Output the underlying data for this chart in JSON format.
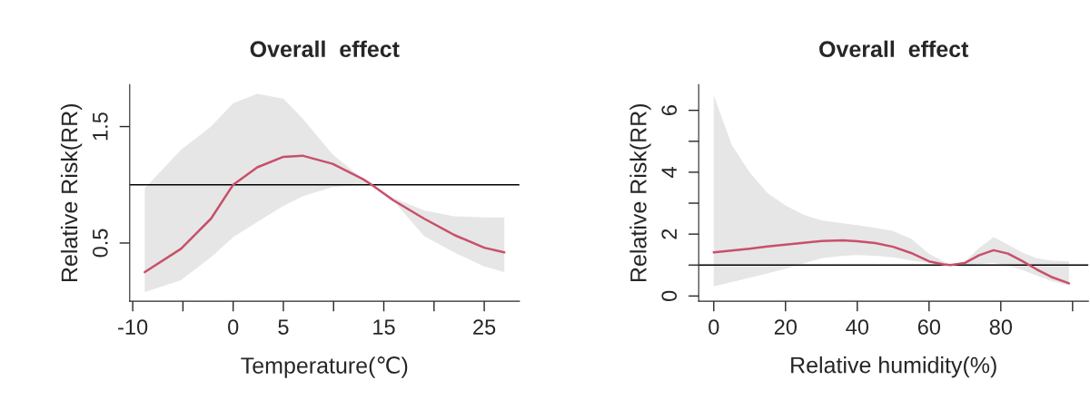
{
  "chart_data": [
    {
      "type": "line",
      "title": "Overall  effect",
      "xlabel": "Temperature(℃)",
      "ylabel": "Relative Risk(RR)",
      "xlim": [
        -10.3,
        28.5
      ],
      "ylim": [
        0,
        1.86
      ],
      "xticks": [
        -10,
        {
          "value": -5,
          "label": null
        },
        0,
        5,
        {
          "value": 10,
          "label": null
        },
        15,
        {
          "value": 20,
          "label": null
        },
        25
      ],
      "yticks": [
        0.5,
        1.5
      ],
      "ref_lines": [
        {
          "axis": "y",
          "value": 1,
          "color": "#000000"
        }
      ],
      "series": [
        {
          "color": "#c8506a",
          "x": [
            -8.8,
            -5.2,
            -2.2,
            0,
            2.4,
            5,
            6.9,
            9.9,
            12.9,
            13.8,
            15.9,
            19,
            22,
            25,
            27
          ],
          "values": [
            0.25,
            0.45,
            0.71,
            1.0,
            1.15,
            1.24,
            1.25,
            1.18,
            1.05,
            1.0,
            0.87,
            0.71,
            0.57,
            0.46,
            0.42
          ],
          "upper": [
            0.97,
            1.3,
            1.5,
            1.7,
            1.78,
            1.74,
            1.57,
            1.26,
            1.05,
            1.0,
            0.89,
            0.78,
            0.73,
            0.72,
            0.72
          ],
          "lower": [
            0.08,
            0.18,
            0.38,
            0.55,
            0.68,
            0.82,
            0.9,
            0.98,
            1.0,
            1.0,
            0.87,
            0.56,
            0.42,
            0.3,
            0.25
          ]
        }
      ]
    },
    {
      "type": "line",
      "title": "Overall  effect",
      "xlabel": "Relative humidity(%)",
      "ylabel": "Relative Risk(RR)",
      "xlim": [
        -4.2,
        104.4
      ],
      "ylim": [
        -0.17,
        6.83
      ],
      "xticks": [
        0,
        20,
        40,
        60,
        80,
        {
          "value": 100,
          "label": null
        }
      ],
      "yticks": [
        0,
        {
          "value": 1,
          "label": null
        },
        2,
        {
          "value": 3,
          "label": null
        },
        4,
        {
          "value": 5,
          "label": null
        },
        6
      ],
      "ref_lines": [
        {
          "axis": "y",
          "value": 1,
          "color": "#000000"
        }
      ],
      "series": [
        {
          "color": "#c8506a",
          "x": [
            0,
            5,
            10,
            15,
            20,
            25,
            30,
            36,
            40,
            45,
            50,
            55,
            60,
            64,
            66,
            70,
            74,
            78,
            82,
            86,
            90,
            94,
            99
          ],
          "values": [
            1.41,
            1.47,
            1.53,
            1.6,
            1.66,
            1.72,
            1.78,
            1.8,
            1.77,
            1.71,
            1.59,
            1.39,
            1.12,
            1.02,
            1.0,
            1.07,
            1.32,
            1.48,
            1.37,
            1.13,
            0.86,
            0.62,
            0.41
          ],
          "upper": [
            6.49,
            4.88,
            4.0,
            3.32,
            2.93,
            2.63,
            2.44,
            2.35,
            2.29,
            2.2,
            2.1,
            1.85,
            1.37,
            1.12,
            1.0,
            1.12,
            1.56,
            1.9,
            1.66,
            1.4,
            1.22,
            1.15,
            1.12
          ],
          "lower": [
            0.31,
            0.45,
            0.59,
            0.73,
            0.88,
            1.05,
            1.22,
            1.3,
            1.32,
            1.3,
            1.25,
            1.15,
            1.07,
            1.0,
            0.98,
            1.0,
            1.04,
            1.07,
            0.98,
            0.84,
            0.66,
            0.49,
            0.34
          ]
        }
      ]
    }
  ]
}
